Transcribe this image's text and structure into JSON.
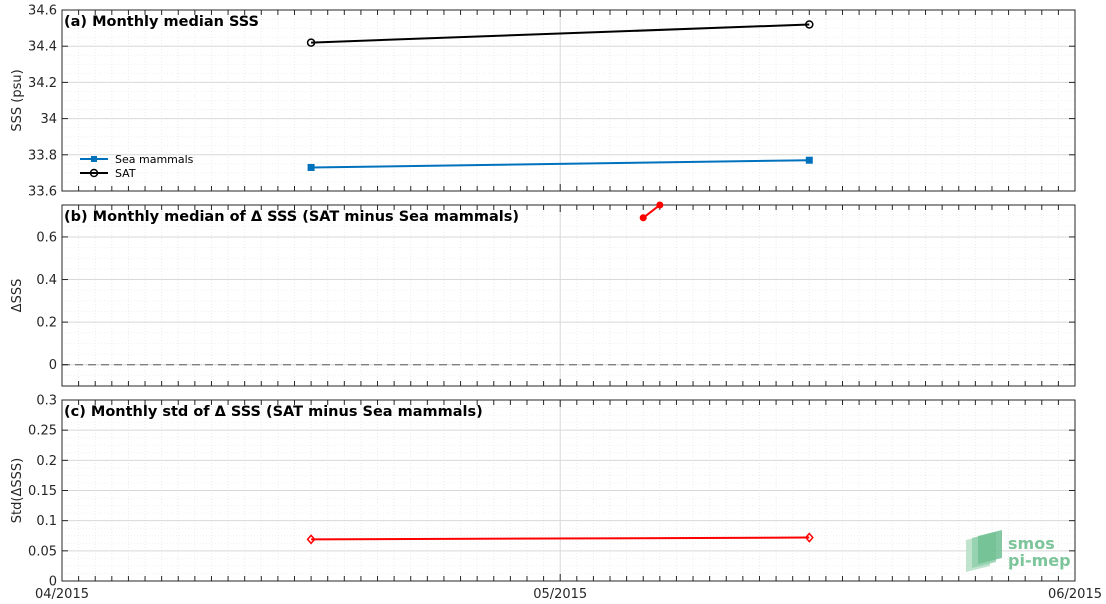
{
  "chart_data": [
    {
      "type": "line",
      "title": "(a) Monthly median SSS",
      "ylabel": "SSS (psu)",
      "ylim": [
        33.6,
        34.6
      ],
      "yticks": [
        "33.6",
        "33.8",
        "34",
        "34.2",
        "34.4",
        "34.6"
      ],
      "grid": true,
      "legend_position": "left",
      "series": [
        {
          "name": "Sea mammals",
          "color": "#0072bd",
          "marker": "square",
          "x": [
            "2015-04-16",
            "2015-05-16"
          ],
          "y": [
            33.73,
            33.77
          ]
        },
        {
          "name": "SAT",
          "color": "#000000",
          "marker": "circle",
          "x": [
            "2015-04-16",
            "2015-05-16"
          ],
          "y": [
            34.42,
            34.52
          ]
        }
      ]
    },
    {
      "type": "line",
      "title": "(b) Monthly median of Δ SSS (SAT minus Sea mammals)",
      "ylabel": "ΔSSS",
      "ylim": [
        -0.1,
        0.75
      ],
      "yticks": [
        "0",
        "0.2",
        "0.4",
        "0.6"
      ],
      "reference_line": {
        "y": 0,
        "style": "dashed",
        "color": "#808080"
      },
      "grid": true,
      "series": [
        {
          "color": "#ff0000",
          "marker": "circle",
          "x": [
            "2015-05-06",
            "2015-05-07"
          ],
          "y": [
            0.69,
            0.75
          ]
        }
      ]
    },
    {
      "type": "line",
      "title": "(c) Monthly std of Δ SSS (SAT minus Sea mammals)",
      "ylabel": "Std(ΔSSS)",
      "ylim": [
        0,
        0.3
      ],
      "yticks": [
        "0",
        "0.05",
        "0.1",
        "0.15",
        "0.2",
        "0.25",
        "0.3"
      ],
      "grid": true,
      "series": [
        {
          "color": "#ff0000",
          "marker": "diamond",
          "x": [
            "2015-04-16",
            "2015-05-16"
          ],
          "y": [
            0.069,
            0.072
          ]
        }
      ]
    }
  ],
  "x_axis": {
    "range": [
      "2015-04-01",
      "2015-06-01"
    ],
    "tick_labels": [
      "04/2015",
      "05/2015",
      "06/2015"
    ]
  },
  "logo": {
    "line1": "smos",
    "line2": "pi-mep",
    "color": "#7cc49a"
  }
}
